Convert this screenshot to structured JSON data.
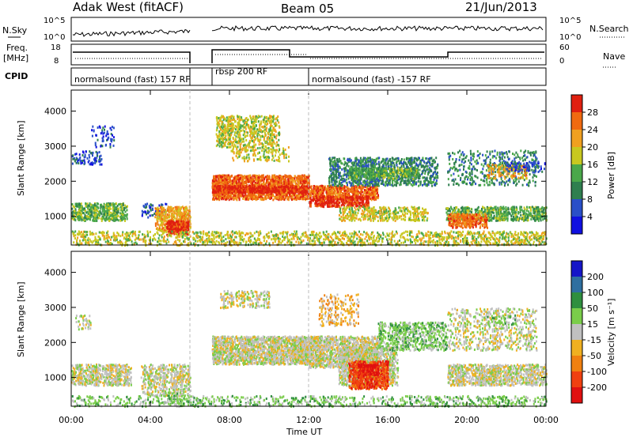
{
  "header": {
    "station": "Adak West (fitACF)",
    "beam": "Beam 05",
    "date": "21/Jun/2013"
  },
  "nsky_panel": {
    "left_label": "N.Sky",
    "right_label": "N.Search",
    "left_ticks": [
      "10^5",
      "10^0"
    ],
    "right_ticks": [
      "10^5",
      "10^0"
    ]
  },
  "freq_panel": {
    "left_label_1": "Freq.",
    "left_label_2": "[MHz]",
    "right_label": "Nave",
    "left_ticks": [
      "18",
      "8"
    ],
    "right_ticks": [
      "60",
      "0"
    ]
  },
  "cpid": {
    "label": "CPID",
    "segments": [
      {
        "text": "normalsound (fast) 157 RF",
        "start_hour": 0,
        "end_hour": 6.0
      },
      {
        "text": "rbsp 200 RF",
        "start_hour": 6.0,
        "end_hour": 12.0
      },
      {
        "text": "normalsound (fast) -157 RF",
        "start_hour": 12.0,
        "end_hour": 24.0
      }
    ]
  },
  "chart_data": [
    {
      "type": "heatmap",
      "name": "power",
      "ylabel": "Slant Range [km]",
      "xlabel": "Time UT",
      "x_ticks": [
        "00:00",
        "04:00",
        "08:00",
        "12:00",
        "16:00",
        "20:00",
        "00:00"
      ],
      "xlim_hours": [
        0,
        24
      ],
      "y_ticks": [
        1000,
        2000,
        3000,
        4000
      ],
      "ylim": [
        180,
        4600
      ],
      "colorbar": {
        "label": "Power [dB]",
        "ticks": [
          4,
          8,
          12,
          16,
          20,
          24,
          28
        ],
        "range": [
          0,
          30
        ],
        "colors": [
          "#1010e0",
          "#2a4fc8",
          "#2f7f4f",
          "#4aa84a",
          "#c8c820",
          "#f0a020",
          "#f06a10",
          "#e02010"
        ]
      },
      "data_gap_hours": [
        6.0,
        7.1
      ]
    },
    {
      "type": "heatmap",
      "name": "velocity",
      "ylabel": "Slant Range [km]",
      "xlabel": "Time UT",
      "x_ticks": [
        "00:00",
        "04:00",
        "08:00",
        "12:00",
        "16:00",
        "20:00",
        "00:00"
      ],
      "xlim_hours": [
        0,
        24
      ],
      "y_ticks": [
        1000,
        2000,
        3000,
        4000
      ],
      "ylim": [
        180,
        4600
      ],
      "colorbar": {
        "label": "Velocity [m s⁻¹]",
        "ticks": [
          200,
          100,
          50,
          15,
          -15,
          -50,
          -100,
          -200
        ],
        "colors": [
          "#1515c8",
          "#2f6fa0",
          "#2f8f3f",
          "#7acd4a",
          "#c0c0c0",
          "#f0b020",
          "#f08010",
          "#f04010",
          "#e01010"
        ]
      }
    }
  ],
  "xaxis_title": "Time UT"
}
